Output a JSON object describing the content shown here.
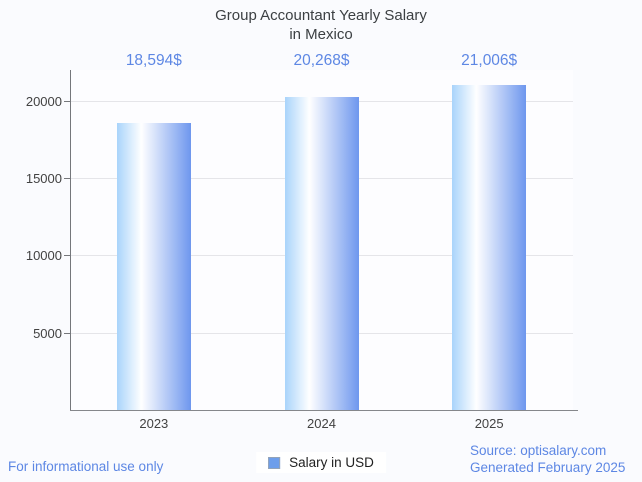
{
  "title": {
    "line1": "Group Accountant Yearly Salary",
    "line2": "in Mexico"
  },
  "chart_data": {
    "type": "bar",
    "title": "Group Accountant Yearly Salary in Mexico",
    "categories": [
      "2023",
      "2024",
      "2025"
    ],
    "values": [
      18594,
      20268,
      21006
    ],
    "value_labels": [
      "18,594$",
      "20,268$",
      "21,006$"
    ],
    "yticks": [
      5000,
      10000,
      15000,
      20000
    ],
    "ytick_labels": [
      "5000",
      "10000",
      "15000",
      "20000"
    ],
    "ylim": [
      0,
      22000
    ],
    "xlabel": "",
    "ylabel": "",
    "grid": true,
    "legend_entries": [
      "Salary in USD"
    ],
    "legend_position": "bottom",
    "bar_gradient": [
      "#a9d4fb",
      "#ffffff",
      "#6e97ee"
    ],
    "bar_gradient_white_stop": "33%"
  },
  "legend": {
    "label": "Salary in USD",
    "swatch_color": "#6d9eeb"
  },
  "footer": {
    "disclaimer": "For informational use only",
    "source": "Source: optisalary.com",
    "generated": "Generated February 2025"
  },
  "colors": {
    "accent_blue": "#5d87e4",
    "title_text": "#3c4043",
    "axis_text": "#424242",
    "gridline": "#e5e5e9",
    "background": "#fafbfe",
    "plot_background": "#fdfdff"
  }
}
